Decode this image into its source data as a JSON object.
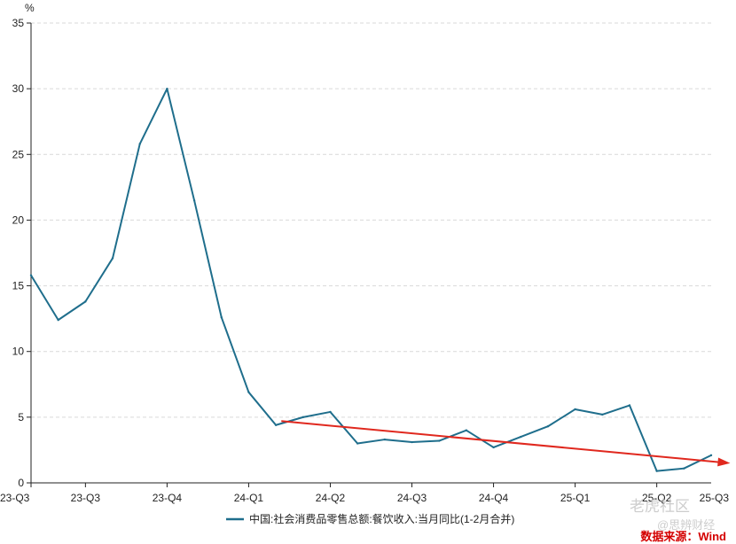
{
  "chart_data": {
    "type": "line",
    "y_unit": "%",
    "ylim": [
      0,
      35
    ],
    "y_ticks": [
      0,
      5,
      10,
      15,
      20,
      25,
      30,
      35
    ],
    "x_tick_labels": [
      "23-Q3",
      "23-Q3",
      "23-Q4",
      "24-Q1",
      "24-Q2",
      "24-Q3",
      "24-Q4",
      "25-Q1",
      "25-Q2",
      "25-Q3"
    ],
    "x_tick_positions": [
      0,
      2,
      5,
      8,
      11,
      14,
      17,
      20,
      23,
      26
    ],
    "grid": "horizontal-dashed",
    "legend_position": "bottom-center",
    "series": [
      {
        "name": "中国:社会消费品零售总额:餐饮收入:当月同比(1-2月合并)",
        "color": "#1f6e8c",
        "values": [
          15.8,
          12.4,
          13.8,
          17.1,
          25.8,
          30.0,
          21.5,
          12.6,
          6.9,
          4.4,
          5.0,
          5.4,
          3.0,
          3.3,
          3.1,
          3.2,
          4.0,
          2.7,
          3.5,
          4.3,
          5.6,
          5.2,
          5.9,
          0.9,
          1.1,
          2.1
        ]
      }
    ],
    "annotation_arrow": {
      "color": "#e0281e",
      "from": {
        "x": 9.2,
        "y": 4.7
      },
      "to": {
        "x": 25.7,
        "y": 1.5
      }
    }
  },
  "watermark": {
    "brand": "老虎社区",
    "handle": "@思辨财经"
  },
  "source_note": "数据来源：Wind"
}
